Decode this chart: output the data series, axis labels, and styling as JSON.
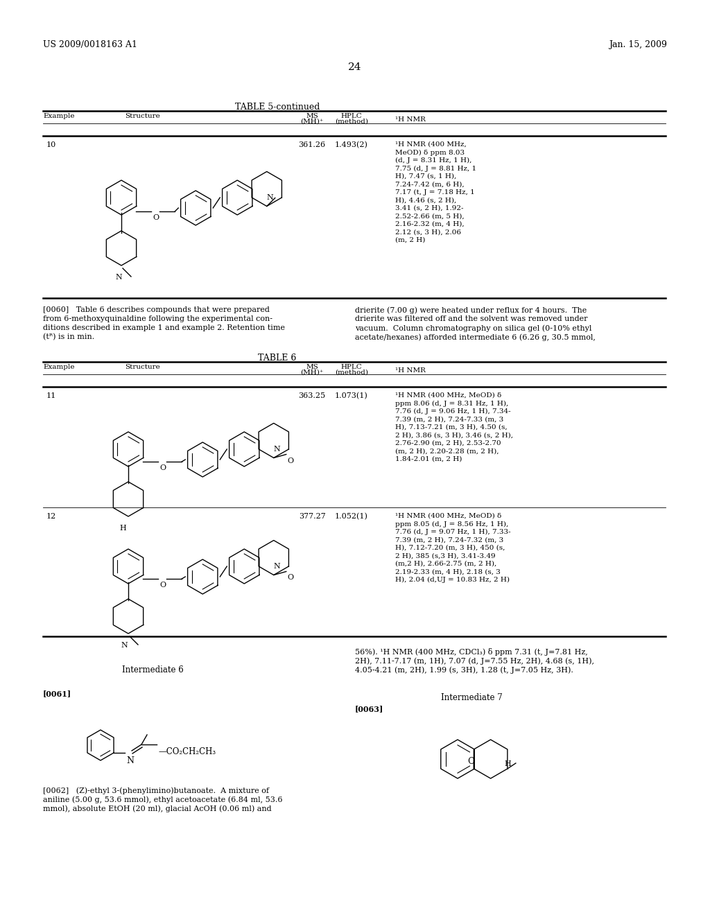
{
  "background_color": "#ffffff",
  "page_number": "24",
  "header_left": "US 2009/0018163 A1",
  "header_right": "Jan. 15, 2009",
  "table5_title": "TABLE 5-continued",
  "table5_row": {
    "example": "10",
    "ms": "361.26",
    "hplc": "1.493(2)",
    "nmr_lines": [
      "¹H NMR (400 MHz,",
      "MeOD) δ ppm 8.03",
      "(d, J = 8.31 Hz, 1 H),",
      "7.75 (d, J = 8.81 Hz, 1",
      "H), 7.47 (s, 1 H),",
      "7.24-7.42 (m, 6 H),",
      "7.17 (t, J = 7.18 Hz, 1",
      "H), 4.46 (s, 2 H),",
      "3.41 (s, 2 H), 1.92-",
      "2.52-2.66 (m, 5 H),",
      "2.16-2.32 (m, 4 H),",
      "2.12 (s, 3 H), 2.06",
      "(m, 2 H)"
    ]
  },
  "para0060_left": [
    "[0060]   Table 6 describes compounds that were prepared",
    "from 6-methoxyquinaldine following the experimental con-",
    "ditions described in example 1 and example 2. Retention time",
    "(tᴿ) is in min."
  ],
  "para0060_right": [
    "drierite (7.00 g) were heated under reflux for 4 hours.  The",
    "drierite was filtered off and the solvent was removed under",
    "vacuum.  Column chromatography on silica gel (0-10% ethyl",
    "acetate/hexanes) afforded intermediate 6 (6.26 g, 30.5 mmol,"
  ],
  "table6_title": "TABLE 6",
  "table6_row11": {
    "example": "11",
    "ms": "363.25",
    "hplc": "1.073(1)",
    "nmr_lines": [
      "¹H NMR (400 MHz, MeOD) δ",
      "ppm 8.06 (d, J = 8.31 Hz, 1 H),",
      "7.76 (d, J = 9.06 Hz, 1 H), 7.34-",
      "7.39 (m, 2 H), 7.24-7.33 (m, 3",
      "H), 7.13-7.21 (m, 3 H), 4.50 (s,",
      "2 H), 3.86 (s, 3 H), 3.46 (s, 2 H),",
      "2.76-2.90 (m, 2 H), 2.53-2.70",
      "(m, 2 H), 2.20-2.28 (m, 2 H),",
      "1.84-2.01 (m, 2 H)"
    ]
  },
  "table6_row12": {
    "example": "12",
    "ms": "377.27",
    "hplc": "1.052(1)",
    "nmr_lines": [
      "¹H NMR (400 MHz, MeOD) δ",
      "ppm 8.05 (d, J = 8.56 Hz, 1 H),",
      "7.76 (d, J = 9.07 Hz, 1 H), 7.33-",
      "7.39 (m, 2 H), 7.24-7.32 (m, 3",
      "H), 7.12-7.20 (m, 3 H), 450 (s,",
      "2 H), 385 (s,3 H), 3.41-3.49",
      "(m,2 H), 2.66-2.75 (m, 2 H),",
      "2.19-2.33 (m, 4 H), 2.18 (s, 3",
      "H), 2.04 (d,UJ = 10.83 Hz, 2 H)"
    ]
  },
  "intermediate6_label": "Intermediate 6",
  "intermediate6_nmr_lines": [
    "56%). ¹H NMR (400 MHz, CDCl₃) δ ppm 7.31 (t, J=7.81 Hz,",
    "2H), 7.11-7.17 (m, 1H), 7.07 (d, J=7.55 Hz, 2H), 4.68 (s, 1H),",
    "4.05-4.21 (m, 2H), 1.99 (s, 3H), 1.28 (t, J=7.05 Hz, 3H)."
  ],
  "intermediate7_label": "Intermediate 7",
  "para0062_lines": [
    "[0062]   (Z)-ethyl 3-(phenylimino)butanoate.  A mixture of",
    "aniline (5.00 g, 53.6 mmol), ethyl acetoacetate (6.84 ml, 53.6",
    "mmol), absolute EtOH (20 ml), glacial AcOH (0.06 ml) and"
  ]
}
